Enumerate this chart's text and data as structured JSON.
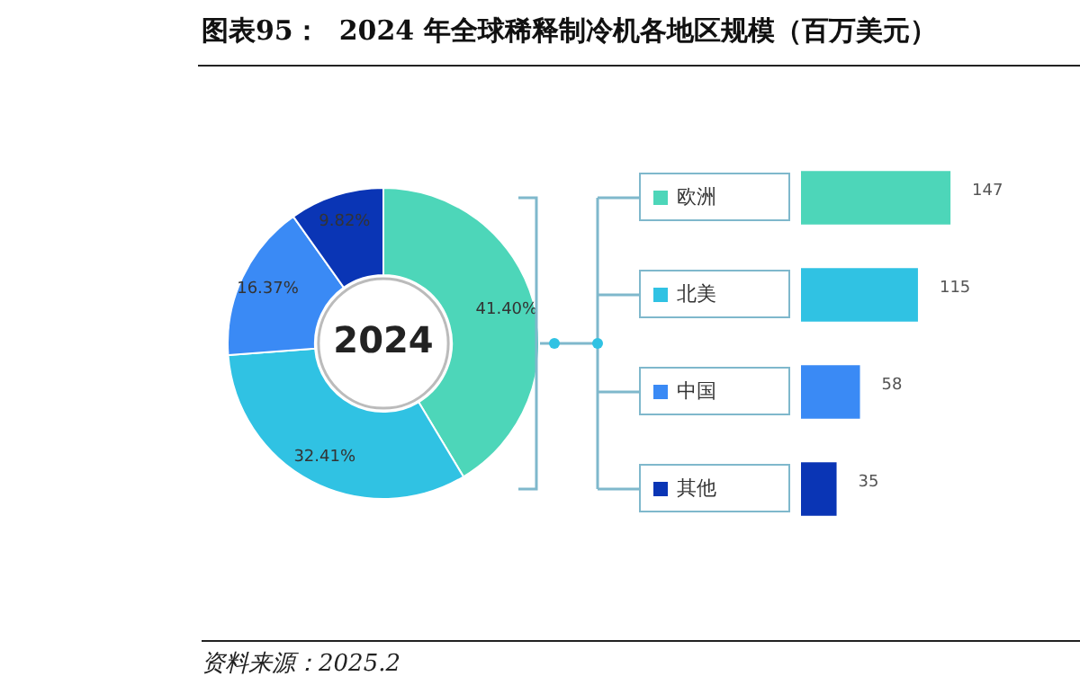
{
  "chart_data": [
    {
      "type": "donut",
      "title": "图表95：  2024 年全球稀释制冷机各地区规模（百万美元）",
      "categories": [
        null,
        null,
        null,
        null
      ],
      "values": [
        41.4,
        32.41,
        16.37,
        9.82
      ],
      "value_labels": [
        "41.40%",
        "32.41%",
        "16.37%",
        "9.82%"
      ],
      "colors": [
        "#4dd6b9",
        "#30c2e3",
        "#3a8af5",
        "#0a35b5"
      ],
      "annotations": [
        "2024"
      ],
      "legend": false
    },
    {
      "type": "bar",
      "orientation": "horizontal",
      "categories": [
        "欧洲",
        "北美",
        "中国",
        "其他"
      ],
      "values": [
        147,
        115,
        58,
        35
      ],
      "colors": [
        "#4dd6b9",
        "#30c2e3",
        "#3a8af5",
        "#0a35b5"
      ],
      "data_labels": true,
      "legend": false,
      "annotations": [
        "资料来源：2025.2"
      ]
    }
  ]
}
